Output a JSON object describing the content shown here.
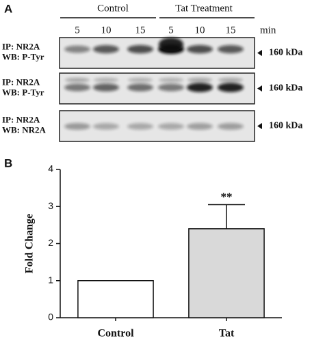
{
  "panel_a": {
    "label": "A",
    "groups": [
      "Control",
      "Tat Treatment"
    ],
    "times": [
      "5",
      "10",
      "15",
      "5",
      "10",
      "15"
    ],
    "time_unit": "min",
    "blots": [
      {
        "ip": "IP: NR2A",
        "wb": "WB: P-Tyr",
        "marker": "160 kDa"
      },
      {
        "ip": "IP: NR2A",
        "wb": "WB: P-Tyr",
        "marker": "160 kDa"
      },
      {
        "ip": "IP: NR2A",
        "wb": "WB: NR2A",
        "marker": "160 kDa"
      }
    ]
  },
  "chart_data": {
    "type": "bar",
    "label": "B",
    "y_label": "Fold Change",
    "categories": [
      "Control",
      "Tat"
    ],
    "values": [
      1,
      2.4
    ],
    "errors": [
      null,
      0.65
    ],
    "colors": [
      "#ffffff",
      "#d9d9d9"
    ],
    "value_annotations": [
      null,
      "**"
    ],
    "ylim": [
      0,
      4
    ],
    "yticks": [
      0,
      1,
      2,
      3,
      4
    ]
  }
}
